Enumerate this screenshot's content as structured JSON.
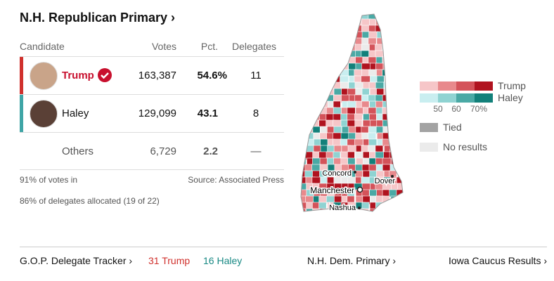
{
  "header": {
    "title": "N.H. Republican Primary ›"
  },
  "table": {
    "columns": [
      "Candidate",
      "Votes",
      "Pct.",
      "Delegates"
    ],
    "rows": [
      [
        "Trump",
        "163,387",
        "54.6%",
        "11"
      ],
      [
        "Haley",
        "129,099",
        "43.1",
        "8"
      ],
      [
        "Others",
        "6,729",
        "2.2",
        "—"
      ]
    ]
  },
  "notes": {
    "reporting": "91% of votes in",
    "source": "Source: Associated Press",
    "delegates": "86% of delegates allocated (19 of 22)"
  },
  "map": {
    "cities": [
      "Concord",
      "Manchester",
      "Dover",
      "Nashua"
    ],
    "legend": {
      "trump": "Trump",
      "haley": "Haley",
      "scale": [
        "50",
        "60",
        "70%"
      ],
      "tied": "Tied",
      "no_results": "No results"
    }
  },
  "footer": {
    "tracker": "G.O.P. Delegate Tracker ›",
    "trump_count": "31 Trump",
    "haley_count": "16 Haley",
    "dem_link": "N.H. Dem. Primary ›",
    "iowa_link": "Iowa Caucus Results ›"
  }
}
